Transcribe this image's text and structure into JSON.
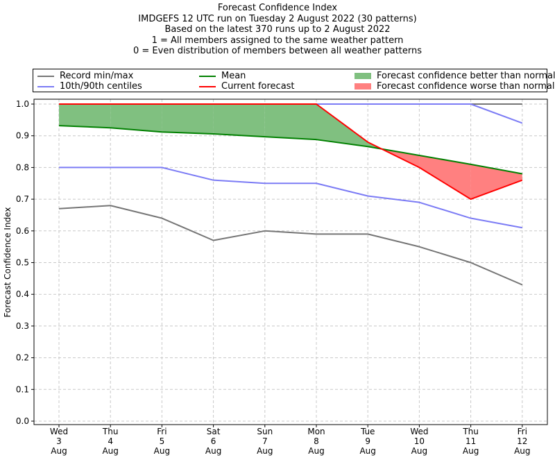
{
  "title_lines": [
    "Forecast Confidence Index",
    "IMDGEFS 12 UTC run on Tuesday 2 August 2022 (30 patterns)",
    "Based on the latest 370 runs up to 2 August 2022",
    "1 = All members assigned to the same weather pattern",
    "0 = Even distribution of members between all weather patterns"
  ],
  "legend": {
    "record": "Record min/max",
    "centiles": "10th/90th centiles",
    "mean": "Mean",
    "current": "Current forecast",
    "better": "Forecast confidence better than normal",
    "worse": "Forecast confidence worse than normal"
  },
  "colors": {
    "record": "#757575",
    "centiles": "#7b7bf5",
    "mean": "#008000",
    "current": "#ff0000",
    "better": "#80c080",
    "worse": "#ff8080"
  },
  "chart_data": {
    "type": "line",
    "ylabel": "Forecast Confidence Index",
    "ylim": [
      0.0,
      1.0
    ],
    "yticks": [
      "0.0",
      "0.1",
      "0.2",
      "0.3",
      "0.4",
      "0.5",
      "0.6",
      "0.7",
      "0.8",
      "0.9",
      "1.0"
    ],
    "grid": true,
    "legend_position": "top",
    "categories": [
      [
        "Wed",
        "3",
        "Aug"
      ],
      [
        "Thu",
        "4",
        "Aug"
      ],
      [
        "Fri",
        "5",
        "Aug"
      ],
      [
        "Sat",
        "6",
        "Aug"
      ],
      [
        "Sun",
        "7",
        "Aug"
      ],
      [
        "Mon",
        "8",
        "Aug"
      ],
      [
        "Tue",
        "9",
        "Aug"
      ],
      [
        "Wed",
        "10",
        "Aug"
      ],
      [
        "Thu",
        "11",
        "Aug"
      ],
      [
        "Fri",
        "12",
        "Aug"
      ]
    ],
    "series": {
      "record_min": [
        0.67,
        0.68,
        0.64,
        0.57,
        0.6,
        0.59,
        0.59,
        0.55,
        0.5,
        0.43
      ],
      "record_max": [
        1.0,
        1.0,
        1.0,
        1.0,
        1.0,
        1.0,
        1.0,
        1.0,
        1.0,
        1.0
      ],
      "centile_10": [
        0.8,
        0.8,
        0.8,
        0.76,
        0.75,
        0.75,
        0.71,
        0.69,
        0.64,
        0.61
      ],
      "centile_90": [
        1.0,
        1.0,
        1.0,
        1.0,
        1.0,
        1.0,
        1.0,
        1.0,
        1.0,
        0.94
      ],
      "mean": [
        0.932,
        0.925,
        0.912,
        0.906,
        0.897,
        0.888,
        0.866,
        0.838,
        0.81,
        0.78
      ],
      "current": [
        1.0,
        1.0,
        1.0,
        1.0,
        1.0,
        1.0,
        0.88,
        0.8,
        0.7,
        0.76
      ]
    }
  }
}
